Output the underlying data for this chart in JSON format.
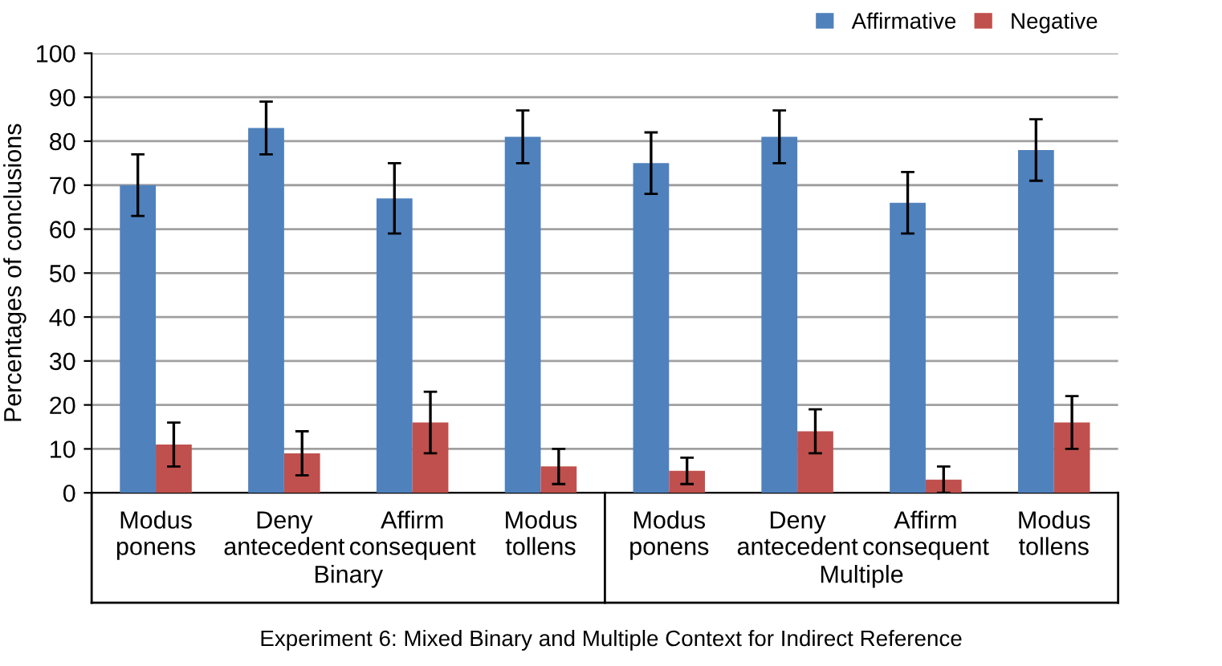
{
  "chart_data": {
    "type": "bar",
    "categories": [
      "Modus\nponens",
      "Deny\nantecedent",
      "Affirm\nconsequent",
      "Modus\ntollens",
      "Modus\nponens",
      "Deny\nantecedent",
      "Affirm\nconsequent",
      "Modus\ntollens"
    ],
    "series": [
      {
        "name": "Affirmative",
        "color": "#4f81bd",
        "values": [
          70,
          83,
          67,
          81,
          75,
          81,
          66,
          78
        ],
        "errors": [
          7,
          6,
          8,
          6,
          7,
          6,
          7,
          7
        ]
      },
      {
        "name": "Negative",
        "color": "#c0504d",
        "values": [
          11,
          9,
          16,
          6,
          5,
          14,
          3,
          16
        ],
        "errors": [
          5,
          5,
          7,
          4,
          3,
          5,
          3,
          6
        ]
      }
    ],
    "ylabel": "Percentages of conclusions",
    "xlabel": "Experiment 6: Mixed Binary and Multiple Context for Indirect Reference",
    "annotations": [
      "Binary",
      "Multiple"
    ],
    "ylim": [
      0,
      100
    ],
    "yticks": [
      0,
      10,
      20,
      30,
      40,
      50,
      60,
      70,
      80,
      90,
      100
    ],
    "grid": "y",
    "legend": "top right"
  }
}
